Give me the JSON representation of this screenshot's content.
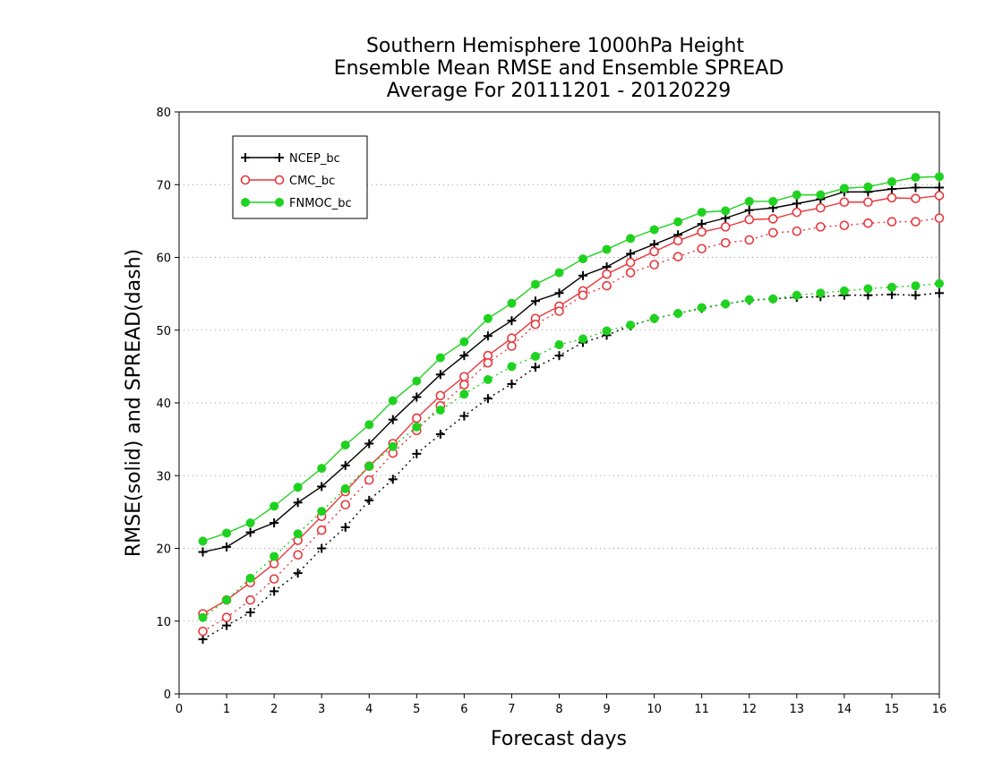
{
  "chart_data": {
    "type": "line",
    "title_lines": [
      "Southern Hemisphere 1000hPa Height",
      "Ensemble Mean RMSE and Ensemble SPREAD",
      "Average For 20111201 - 20120229"
    ],
    "xlabel": "Forecast days",
    "ylabel": "RMSE(solid) and SPREAD(dash)",
    "xlim": [
      0,
      16
    ],
    "ylim": [
      0,
      80
    ],
    "xticks": [
      "0",
      "1",
      "2",
      "3",
      "4",
      "5",
      "6",
      "7",
      "8",
      "9",
      "10",
      "11",
      "12",
      "13",
      "14",
      "15",
      "16"
    ],
    "yticks": [
      "0",
      "10",
      "20",
      "30",
      "40",
      "50",
      "60",
      "70",
      "80"
    ],
    "grid": "horizontal dotted",
    "legend_position": "top-left",
    "x": [
      0.5,
      1,
      1.5,
      2,
      2.5,
      3,
      3.5,
      4,
      4.5,
      5,
      5.5,
      6,
      6.5,
      7,
      7.5,
      8,
      8.5,
      9,
      9.5,
      10,
      10.5,
      11,
      11.5,
      12,
      12.5,
      13,
      13.5,
      14,
      14.5,
      15,
      15.5,
      16
    ],
    "series": [
      {
        "name": "NCEP_bc",
        "color": "#000000",
        "marker": "plus",
        "rmse": [
          19.5,
          20.2,
          22.2,
          23.5,
          26.3,
          28.5,
          31.4,
          34.4,
          37.7,
          40.8,
          43.9,
          46.5,
          49.2,
          51.3,
          54.0,
          55.1,
          57.5,
          58.7,
          60.5,
          61.8,
          63.1,
          64.6,
          65.4,
          66.5,
          66.8,
          67.4,
          68.0,
          69.0,
          69.0,
          69.4,
          69.6,
          69.6
        ],
        "spread": [
          7.5,
          9.4,
          11.2,
          14.1,
          16.6,
          20.0,
          22.9,
          26.6,
          29.5,
          33.0,
          35.7,
          38.2,
          40.6,
          42.6,
          44.9,
          46.5,
          48.3,
          49.3,
          50.6,
          51.6,
          52.3,
          53.0,
          53.6,
          54.1,
          54.3,
          54.5,
          54.6,
          54.8,
          54.8,
          54.9,
          54.8,
          55.1
        ]
      },
      {
        "name": "CMC_bc",
        "color": "#e8373b",
        "marker": "circle-open",
        "rmse": [
          11.0,
          12.9,
          15.3,
          17.9,
          21.1,
          24.4,
          27.8,
          31.3,
          34.4,
          37.9,
          41.0,
          43.6,
          46.5,
          48.9,
          51.6,
          53.3,
          55.4,
          57.7,
          59.3,
          60.8,
          62.3,
          63.5,
          64.2,
          65.2,
          65.3,
          66.2,
          66.8,
          67.6,
          67.6,
          68.2,
          68.1,
          68.5
        ],
        "spread": [
          8.6,
          10.5,
          12.9,
          15.8,
          19.1,
          22.5,
          26.0,
          29.4,
          33.1,
          36.2,
          39.6,
          42.5,
          45.5,
          47.8,
          50.8,
          52.6,
          54.8,
          56.1,
          57.9,
          59.0,
          60.1,
          61.2,
          62.0,
          62.4,
          63.4,
          63.6,
          64.2,
          64.4,
          64.7,
          64.9,
          64.9,
          65.4
        ]
      },
      {
        "name": "FNMOC_bc",
        "color": "#1fd21f",
        "marker": "circle-filled",
        "rmse": [
          21.0,
          22.1,
          23.5,
          25.8,
          28.4,
          31.0,
          34.2,
          37.0,
          40.3,
          43.0,
          46.2,
          48.4,
          51.6,
          53.7,
          56.3,
          57.9,
          59.8,
          61.1,
          62.6,
          63.8,
          64.9,
          66.2,
          66.4,
          67.7,
          67.7,
          68.6,
          68.6,
          69.5,
          69.7,
          70.4,
          71.0,
          71.1
        ],
        "spread": [
          10.5,
          12.9,
          15.9,
          18.9,
          22.0,
          25.1,
          28.2,
          31.3,
          34.0,
          36.7,
          39.0,
          41.2,
          43.2,
          45.0,
          46.4,
          48.0,
          48.8,
          49.9,
          50.7,
          51.6,
          52.3,
          53.1,
          53.6,
          54.2,
          54.3,
          54.8,
          55.1,
          55.4,
          55.7,
          55.9,
          56.1,
          56.4
        ]
      }
    ]
  }
}
